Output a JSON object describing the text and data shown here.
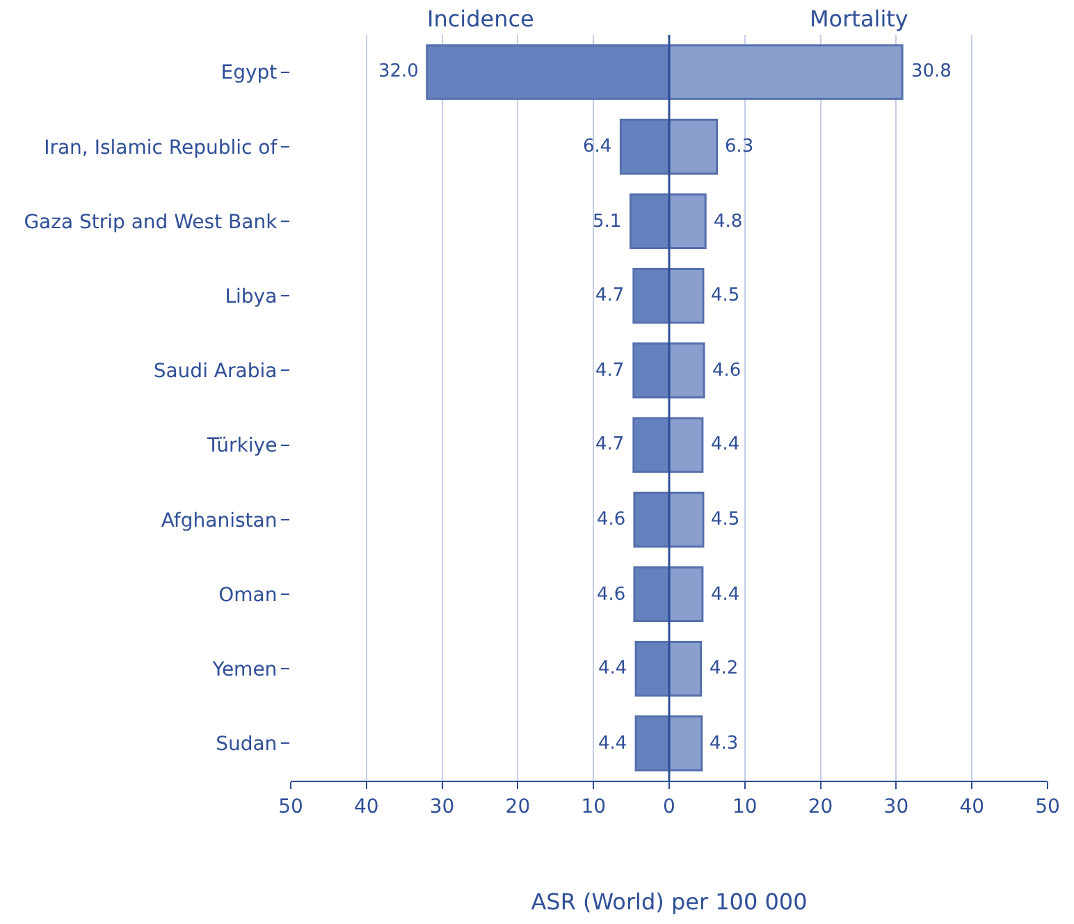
{
  "chart_data": {
    "type": "bar",
    "orientation": "horizontal",
    "xlabel": "ASR (World) per 100 000",
    "categories": [
      "Egypt",
      "Iran, Islamic Republic of",
      "Gaza Strip and West Bank",
      "Libya",
      "Saudi Arabia",
      "Türkiye",
      "Afghanistan",
      "Oman",
      "Yemen",
      "Sudan"
    ],
    "series": [
      {
        "name": "Incidence",
        "color": "#6581bd",
        "base": [
          -32.0,
          -6.4,
          -5.1,
          -4.7,
          -4.7,
          -4.7,
          -4.6,
          -4.6,
          -4.4,
          -4.4
        ],
        "values": [
          32.0,
          6.4,
          5.1,
          4.7,
          4.7,
          4.7,
          4.6,
          4.6,
          4.4,
          4.4
        ],
        "value_labels": [
          "32.0",
          "6.4",
          "5.1",
          "4.7",
          "4.7",
          "4.7",
          "4.6",
          "4.6",
          "4.4",
          "4.4"
        ]
      },
      {
        "name": "Mortality",
        "color": "#8a9fcd",
        "values": [
          30.8,
          6.3,
          4.8,
          4.5,
          4.6,
          4.4,
          4.5,
          4.4,
          4.2,
          4.3
        ],
        "value_labels": [
          "30.8",
          "6.3",
          "4.8",
          "4.5",
          "4.6",
          "4.4",
          "4.5",
          "4.4",
          "4.2",
          "4.3"
        ]
      }
    ],
    "xlim": [
      -50,
      50
    ],
    "xticks": [
      {
        "value": -50,
        "label": "50"
      },
      {
        "value": -40,
        "label": "40"
      },
      {
        "value": -30,
        "label": "30"
      },
      {
        "value": -20,
        "label": "20"
      },
      {
        "value": -10,
        "label": "10"
      },
      0,
      10,
      20,
      30,
      40,
      50
    ],
    "ref_lines": [
      {
        "axis": "x",
        "value": 0,
        "color": "#2f4f98"
      }
    ],
    "grid": "x",
    "legend": false
  }
}
